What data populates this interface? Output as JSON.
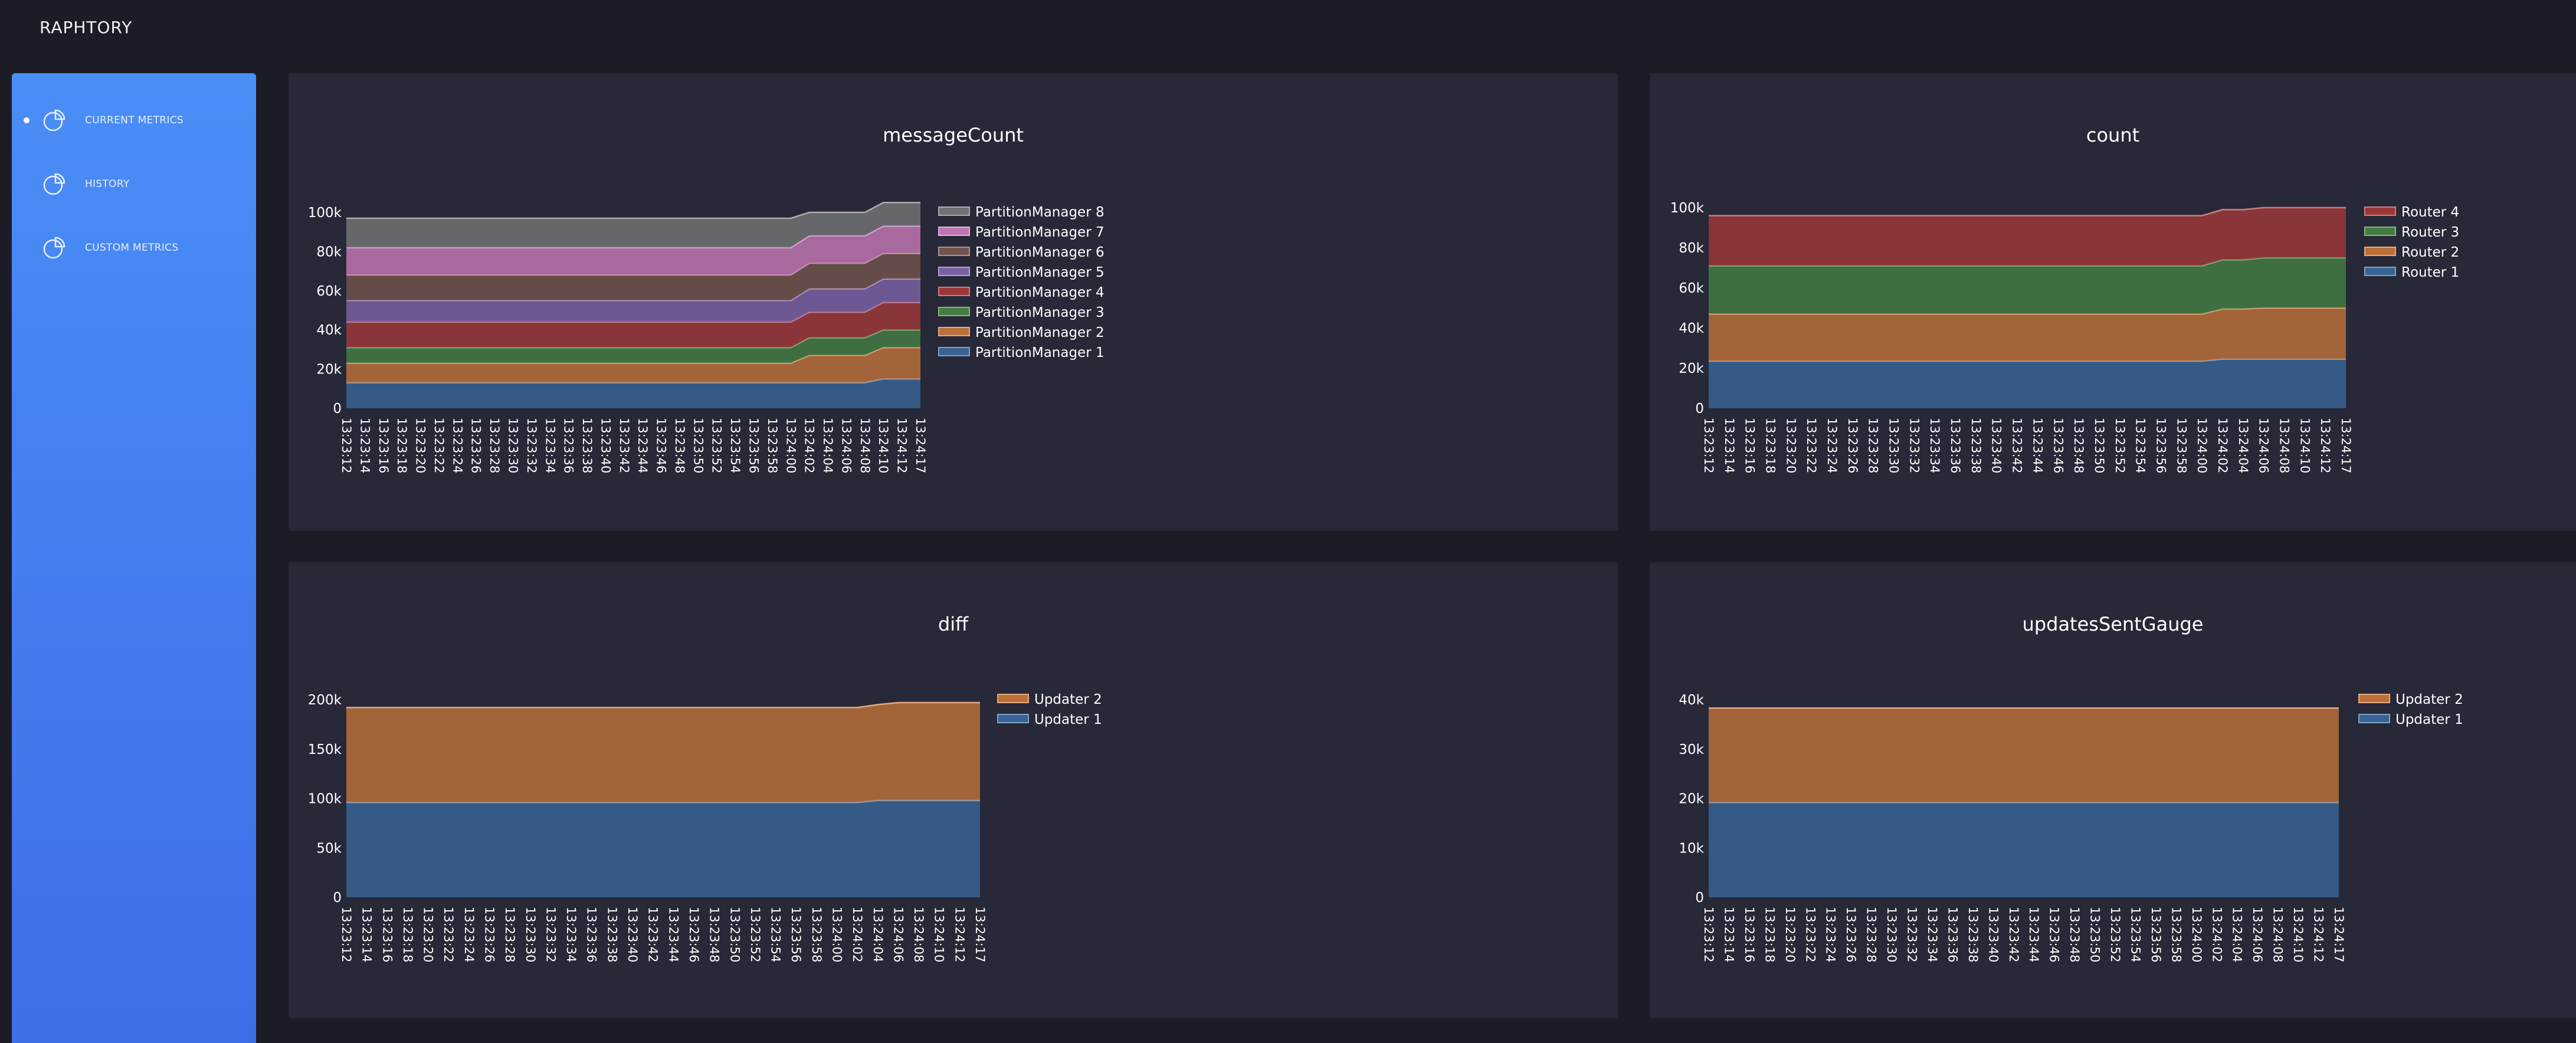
{
  "app": {
    "brand": "RAPHTORY"
  },
  "sidebar": {
    "items": [
      {
        "label": "CURRENT METRICS",
        "icon": "pie-chart-icon",
        "active": true
      },
      {
        "label": "HISTORY",
        "icon": "pie-chart-icon",
        "active": false
      },
      {
        "label": "CUSTOM METRICS",
        "icon": "pie-chart-icon",
        "active": false
      }
    ]
  },
  "colors": {
    "background": "#1c1c27",
    "panel": "#272838",
    "sidebar_top": "#4a8ef6",
    "sidebar_bottom": "#3f6ee9"
  },
  "chart_data": [
    {
      "type": "area",
      "stacked": true,
      "title": "messageCount",
      "x": [
        "13:23:12",
        "13:23:14",
        "13:23:16",
        "13:23:18",
        "13:23:20",
        "13:23:22",
        "13:23:24",
        "13:23:26",
        "13:23:28",
        "13:23:30",
        "13:23:32",
        "13:23:34",
        "13:23:36",
        "13:23:38",
        "13:23:40",
        "13:23:42",
        "13:23:44",
        "13:23:46",
        "13:23:48",
        "13:23:50",
        "13:23:52",
        "13:23:54",
        "13:23:56",
        "13:23:58",
        "13:24:00",
        "13:24:02",
        "13:24:04",
        "13:24:06",
        "13:24:08",
        "13:24:10",
        "13:24:12",
        "13:24:17"
      ],
      "ylim": [
        0,
        100000
      ],
      "yticks": [
        "0",
        "20k",
        "40k",
        "60k",
        "80k",
        "100k"
      ],
      "legend_position": "right",
      "series": [
        {
          "name": "PartitionManager 1",
          "color": "#3b6ea5",
          "values": [
            13000,
            13000,
            13000,
            13000,
            13000,
            13000,
            13000,
            13000,
            13000,
            13000,
            13000,
            13000,
            13000,
            13000,
            13000,
            13000,
            13000,
            13000,
            13000,
            13000,
            13000,
            13000,
            13000,
            13000,
            13000,
            13000,
            13000,
            13000,
            13000,
            15000,
            15000,
            15000
          ]
        },
        {
          "name": "PartitionManager 2",
          "color": "#d67b3a",
          "values": [
            10000,
            10000,
            10000,
            10000,
            10000,
            10000,
            10000,
            10000,
            10000,
            10000,
            10000,
            10000,
            10000,
            10000,
            10000,
            10000,
            10000,
            10000,
            10000,
            10000,
            10000,
            10000,
            10000,
            10000,
            10000,
            14000,
            14000,
            14000,
            14000,
            16000,
            16000,
            16000
          ]
        },
        {
          "name": "PartitionManager 3",
          "color": "#4a8a44",
          "values": [
            8000,
            8000,
            8000,
            8000,
            8000,
            8000,
            8000,
            8000,
            8000,
            8000,
            8000,
            8000,
            8000,
            8000,
            8000,
            8000,
            8000,
            8000,
            8000,
            8000,
            8000,
            8000,
            8000,
            8000,
            8000,
            9000,
            9000,
            9000,
            9000,
            9000,
            9000,
            9000
          ]
        },
        {
          "name": "PartitionManager 4",
          "color": "#b03a3a",
          "values": [
            13000,
            13000,
            13000,
            13000,
            13000,
            13000,
            13000,
            13000,
            13000,
            13000,
            13000,
            13000,
            13000,
            13000,
            13000,
            13000,
            13000,
            13000,
            13000,
            13000,
            13000,
            13000,
            13000,
            13000,
            13000,
            13000,
            13000,
            13000,
            13000,
            14000,
            14000,
            14000
          ]
        },
        {
          "name": "PartitionManager 5",
          "color": "#8a6bb8",
          "values": [
            11000,
            11000,
            11000,
            11000,
            11000,
            11000,
            11000,
            11000,
            11000,
            11000,
            11000,
            11000,
            11000,
            11000,
            11000,
            11000,
            11000,
            11000,
            11000,
            11000,
            11000,
            11000,
            11000,
            11000,
            11000,
            12000,
            12000,
            12000,
            12000,
            12000,
            12000,
            12000
          ]
        },
        {
          "name": "PartitionManager 6",
          "color": "#7d5a50",
          "values": [
            13000,
            13000,
            13000,
            13000,
            13000,
            13000,
            13000,
            13000,
            13000,
            13000,
            13000,
            13000,
            13000,
            13000,
            13000,
            13000,
            13000,
            13000,
            13000,
            13000,
            13000,
            13000,
            13000,
            13000,
            13000,
            13000,
            13000,
            13000,
            13000,
            13000,
            13000,
            13000
          ]
        },
        {
          "name": "PartitionManager 7",
          "color": "#d982c6",
          "values": [
            14000,
            14000,
            14000,
            14000,
            14000,
            14000,
            14000,
            14000,
            14000,
            14000,
            14000,
            14000,
            14000,
            14000,
            14000,
            14000,
            14000,
            14000,
            14000,
            14000,
            14000,
            14000,
            14000,
            14000,
            14000,
            14000,
            14000,
            14000,
            14000,
            14000,
            14000,
            14000
          ]
        },
        {
          "name": "PartitionManager 8",
          "color": "#7f7f7f",
          "values": [
            15000,
            15000,
            15000,
            15000,
            15000,
            15000,
            15000,
            15000,
            15000,
            15000,
            15000,
            15000,
            15000,
            15000,
            15000,
            15000,
            15000,
            15000,
            15000,
            15000,
            15000,
            15000,
            15000,
            15000,
            15000,
            12000,
            12000,
            12000,
            12000,
            12000,
            12000,
            12000
          ]
        }
      ]
    },
    {
      "type": "area",
      "stacked": true,
      "title": "count",
      "x": [
        "13:23:12",
        "13:23:14",
        "13:23:16",
        "13:23:18",
        "13:23:20",
        "13:23:22",
        "13:23:24",
        "13:23:26",
        "13:23:28",
        "13:23:30",
        "13:23:32",
        "13:23:34",
        "13:23:36",
        "13:23:38",
        "13:23:40",
        "13:23:42",
        "13:23:44",
        "13:23:46",
        "13:23:48",
        "13:23:50",
        "13:23:52",
        "13:23:54",
        "13:23:56",
        "13:23:58",
        "13:24:00",
        "13:24:02",
        "13:24:04",
        "13:24:06",
        "13:24:08",
        "13:24:10",
        "13:24:12",
        "13:24:17"
      ],
      "ylim": [
        0,
        100000
      ],
      "yticks": [
        "0",
        "20k",
        "40k",
        "60k",
        "80k",
        "100k"
      ],
      "legend_position": "right",
      "series": [
        {
          "name": "Router 1",
          "color": "#3b6ea5",
          "values": [
            23500,
            23500,
            23500,
            23500,
            23500,
            23500,
            23500,
            23500,
            23500,
            23500,
            23500,
            23500,
            23500,
            23500,
            23500,
            23500,
            23500,
            23500,
            23500,
            23500,
            23500,
            23500,
            23500,
            23500,
            23500,
            24500,
            24500,
            24500,
            24500,
            24500,
            24500,
            24500
          ]
        },
        {
          "name": "Router 2",
          "color": "#d67b3a",
          "values": [
            23500,
            23500,
            23500,
            23500,
            23500,
            23500,
            23500,
            23500,
            23500,
            23500,
            23500,
            23500,
            23500,
            23500,
            23500,
            23500,
            23500,
            23500,
            23500,
            23500,
            23500,
            23500,
            23500,
            23500,
            23500,
            25000,
            25000,
            25500,
            25500,
            25500,
            25500,
            25500
          ]
        },
        {
          "name": "Router 3",
          "color": "#4a8a44",
          "values": [
            24000,
            24000,
            24000,
            24000,
            24000,
            24000,
            24000,
            24000,
            24000,
            24000,
            24000,
            24000,
            24000,
            24000,
            24000,
            24000,
            24000,
            24000,
            24000,
            24000,
            24000,
            24000,
            24000,
            24000,
            24000,
            24500,
            24500,
            25000,
            25000,
            25000,
            25000,
            25000
          ]
        },
        {
          "name": "Router 4",
          "color": "#b03a3a",
          "values": [
            25000,
            25000,
            25000,
            25000,
            25000,
            25000,
            25000,
            25000,
            25000,
            25000,
            25000,
            25000,
            25000,
            25000,
            25000,
            25000,
            25000,
            25000,
            25000,
            25000,
            25000,
            25000,
            25000,
            25000,
            25000,
            25000,
            25000,
            25000,
            25000,
            25000,
            25000,
            25000
          ]
        }
      ]
    },
    {
      "type": "area",
      "stacked": true,
      "title": "diff",
      "x": [
        "13:23:12",
        "13:23:14",
        "13:23:16",
        "13:23:18",
        "13:23:20",
        "13:23:22",
        "13:23:24",
        "13:23:26",
        "13:23:28",
        "13:23:30",
        "13:23:32",
        "13:23:34",
        "13:23:36",
        "13:23:38",
        "13:23:40",
        "13:23:42",
        "13:23:44",
        "13:23:46",
        "13:23:48",
        "13:23:50",
        "13:23:52",
        "13:23:54",
        "13:23:56",
        "13:23:58",
        "13:24:00",
        "13:24:02",
        "13:24:04",
        "13:24:06",
        "13:24:08",
        "13:24:10",
        "13:24:12",
        "13:24:17"
      ],
      "ylim": [
        0,
        200000
      ],
      "yticks": [
        "0",
        "50k",
        "100k",
        "150k",
        "200k"
      ],
      "legend_position": "right",
      "series": [
        {
          "name": "Updater 1",
          "color": "#3b6ea5",
          "values": [
            96000,
            96000,
            96000,
            96000,
            96000,
            96000,
            96000,
            96000,
            96000,
            96000,
            96000,
            96000,
            96000,
            96000,
            96000,
            96000,
            96000,
            96000,
            96000,
            96000,
            96000,
            96000,
            96000,
            96000,
            96000,
            96000,
            98000,
            98000,
            98000,
            98000,
            98000,
            98000
          ]
        },
        {
          "name": "Updater 2",
          "color": "#d67b3a",
          "values": [
            96000,
            96000,
            96000,
            96000,
            96000,
            96000,
            96000,
            96000,
            96000,
            96000,
            96000,
            96000,
            96000,
            96000,
            96000,
            96000,
            96000,
            96000,
            96000,
            96000,
            96000,
            96000,
            96000,
            96000,
            96000,
            96000,
            97000,
            99000,
            99000,
            99000,
            99000,
            99000
          ]
        }
      ]
    },
    {
      "type": "area",
      "stacked": true,
      "title": "updatesSentGauge",
      "x": [
        "13:23:12",
        "13:23:14",
        "13:23:16",
        "13:23:18",
        "13:23:20",
        "13:23:22",
        "13:23:24",
        "13:23:26",
        "13:23:28",
        "13:23:30",
        "13:23:32",
        "13:23:34",
        "13:23:36",
        "13:23:38",
        "13:23:40",
        "13:23:42",
        "13:23:44",
        "13:23:46",
        "13:23:48",
        "13:23:50",
        "13:23:52",
        "13:23:54",
        "13:23:56",
        "13:23:58",
        "13:24:00",
        "13:24:02",
        "13:24:04",
        "13:24:06",
        "13:24:08",
        "13:24:10",
        "13:24:12",
        "13:24:17"
      ],
      "ylim": [
        0,
        40000
      ],
      "yticks": [
        "0",
        "10k",
        "20k",
        "30k",
        "40k"
      ],
      "legend_position": "right",
      "series": [
        {
          "name": "Updater 1",
          "color": "#3b6ea5",
          "values": [
            19200,
            19200,
            19200,
            19200,
            19200,
            19200,
            19200,
            19200,
            19200,
            19200,
            19200,
            19200,
            19200,
            19200,
            19200,
            19200,
            19200,
            19200,
            19200,
            19200,
            19200,
            19200,
            19200,
            19200,
            19200,
            19200,
            19200,
            19200,
            19200,
            19200,
            19200,
            19200
          ]
        },
        {
          "name": "Updater 2",
          "color": "#d67b3a",
          "values": [
            19100,
            19100,
            19100,
            19100,
            19100,
            19100,
            19100,
            19100,
            19100,
            19100,
            19100,
            19100,
            19100,
            19100,
            19100,
            19100,
            19100,
            19100,
            19100,
            19100,
            19100,
            19100,
            19100,
            19100,
            19100,
            19100,
            19100,
            19100,
            19100,
            19100,
            19100,
            19100
          ]
        }
      ]
    }
  ]
}
